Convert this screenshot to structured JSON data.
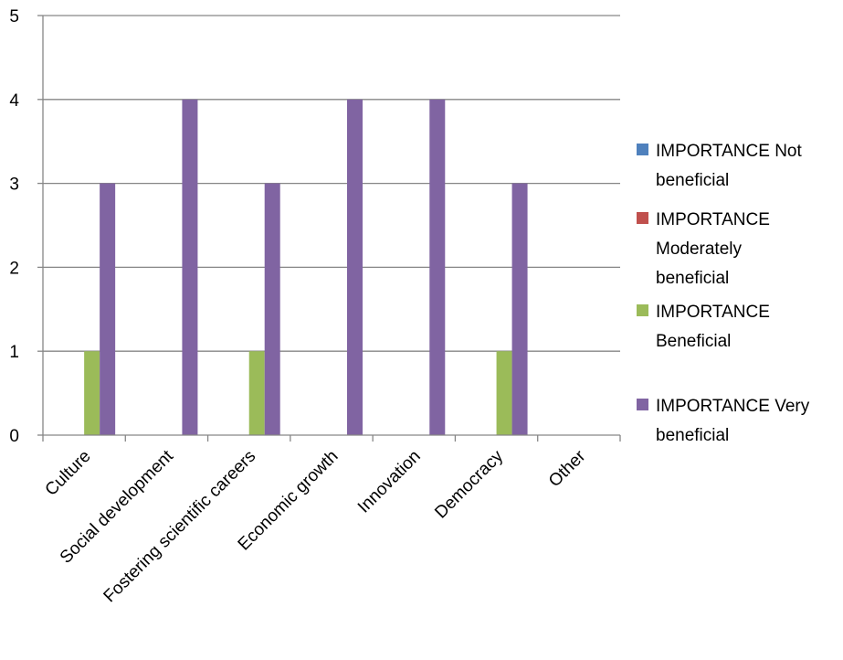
{
  "chart_data": {
    "type": "bar",
    "categories": [
      "Culture",
      "Social development",
      "Fostering scientific careers",
      "Economic growth",
      "Innovation",
      "Democracy",
      "Other"
    ],
    "series": [
      {
        "name": "IMPORTANCE Not beneficial",
        "color": "#4F81BD",
        "values": [
          0,
          0,
          0,
          0,
          0,
          0,
          0
        ]
      },
      {
        "name": "IMPORTANCE Moderately beneficial",
        "color": "#C0504D",
        "values": [
          0,
          0,
          0,
          0,
          0,
          0,
          0
        ]
      },
      {
        "name": "IMPORTANCE Beneficial",
        "color": "#9BBB59",
        "values": [
          1,
          0,
          1,
          0,
          0,
          1,
          0
        ]
      },
      {
        "name": "IMPORTANCE Very beneficial",
        "color": "#8064A2",
        "values": [
          3,
          4,
          3,
          4,
          4,
          3,
          0
        ]
      }
    ],
    "ylim": [
      0,
      5
    ],
    "yticks": [
      0,
      1,
      2,
      3,
      4,
      5
    ],
    "grid": true,
    "legend_position": "right",
    "title": "",
    "xlabel": "",
    "ylabel": ""
  }
}
